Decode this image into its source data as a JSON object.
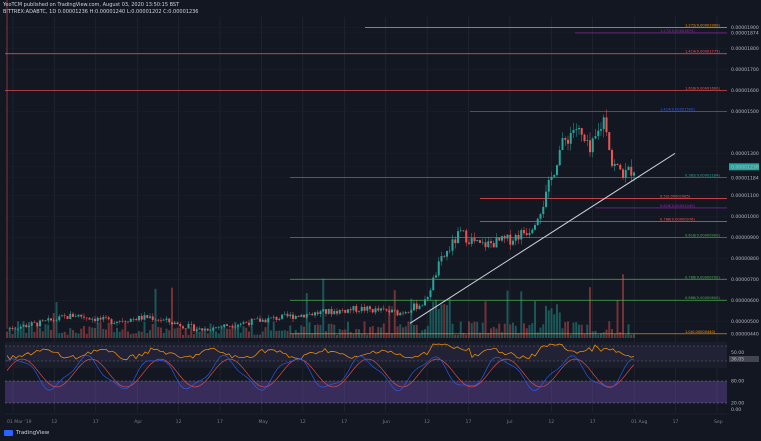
{
  "header": {
    "line1": "YeoTCM published on TradingView.com, August 03, 2020 13:50:15 BST",
    "line2": "BITTREX:ADABTC, 1D  0.00001236  H:0.00001240  L:0.00001202  C:0.00001236"
  },
  "footer": {
    "brand": "TradingView"
  },
  "chart_data": {
    "type": "candlestick",
    "symbol": "BITTREX:ADABTC",
    "timeframe": "1D",
    "x_ticks": [
      "01 Mar '19",
      "12",
      "17",
      "Apr",
      "12",
      "17",
      "May",
      "12",
      "17",
      "Jun",
      "12",
      "17",
      "Jul",
      "12",
      "17",
      "01 Aug",
      "17",
      "Sep"
    ],
    "price_axis": [
      "0.00001900",
      "0.00001874",
      "0.00001800",
      "0.00001700",
      "0.00001600",
      "0.00001500",
      "0.00001300",
      "0.00001236",
      "0.00001184",
      "0.00001100",
      "0.00001000",
      "0.00000900",
      "0.00000800",
      "0.00000700",
      "0.00000600",
      "0.00000500",
      "0.00000440"
    ],
    "last_price": "0.00001236",
    "levels": [
      {
        "label": "1.272(0.00001900)",
        "color": "#ff9800"
      },
      {
        "label": "1.272(0.00001874)",
        "color": "#9c27b0"
      },
      {
        "label": "1.414(0.00001775)",
        "color": "#ff5252"
      },
      {
        "label": "1.618(0.00001600)",
        "color": "#ff5252"
      },
      {
        "label": "1.414(0.00001500)",
        "color": "#2962ff"
      },
      {
        "label": "0.382(0.00001184)",
        "color": "#26a69a"
      },
      {
        "label": "0.5(0.00001085)",
        "color": "#ff5252"
      },
      {
        "label": "0.618(0.00001040)",
        "color": "#9c27b0"
      },
      {
        "label": "0.786(0.00000976)",
        "color": "#ff5252"
      },
      {
        "label": "0.618(0.00000900)",
        "color": "#4caf50"
      },
      {
        "label": "0.786(0.00000700)",
        "color": "#4caf50"
      },
      {
        "label": "0.886(0.00000600)",
        "color": "#4caf50"
      },
      {
        "label": "1.0(0.00000440)",
        "color": "#ff9800"
      }
    ],
    "trendline": {
      "from": "Jun",
      "to": "Aug",
      "color": "#d1d4dc"
    },
    "rsi": {
      "label": "50.00",
      "levels": [
        "70",
        "30"
      ],
      "last": "36.05"
    },
    "stoch_rsi": {
      "levels": [
        "80.00",
        "20.00"
      ],
      "last": "0.00"
    },
    "colors": {
      "up": "#26a69a",
      "down": "#ef5350",
      "rsi": "#ff9800",
      "stoch_k": "#2962ff",
      "stoch_d": "#ef5350",
      "band": "#7e57c2"
    }
  }
}
